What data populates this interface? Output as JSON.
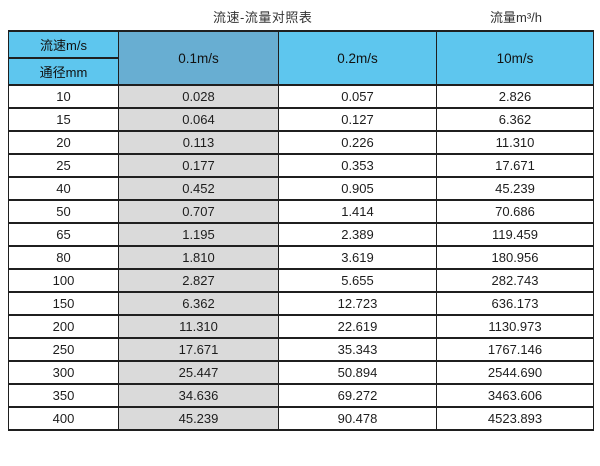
{
  "page": {
    "title": "流速-流量对照表",
    "right_title": "流量m³/h"
  },
  "colors": {
    "header_blue": "#5ec6ee",
    "header_dark_blue": "#68aed2",
    "gray_column": "#dadada",
    "border": "#1f1f1f"
  },
  "table": {
    "header": {
      "top_left_top": "流速m/s",
      "top_left_bottom": "通径mm",
      "velocity_columns": [
        "0.1m/s",
        "0.2m/s",
        "10m/s"
      ]
    },
    "rows": [
      {
        "dn": "10",
        "values": [
          "0.028",
          "0.057",
          "2.826"
        ]
      },
      {
        "dn": "15",
        "values": [
          "0.064",
          "0.127",
          "6.362"
        ]
      },
      {
        "dn": "20",
        "values": [
          "0.113",
          "0.226",
          "11.310"
        ]
      },
      {
        "dn": "25",
        "values": [
          "0.177",
          "0.353",
          "17.671"
        ]
      },
      {
        "dn": "40",
        "values": [
          "0.452",
          "0.905",
          "45.239"
        ]
      },
      {
        "dn": "50",
        "values": [
          "0.707",
          "1.414",
          "70.686"
        ]
      },
      {
        "dn": "65",
        "values": [
          "1.195",
          "2.389",
          "119.459"
        ]
      },
      {
        "dn": "80",
        "values": [
          "1.810",
          "3.619",
          "180.956"
        ]
      },
      {
        "dn": "100",
        "values": [
          "2.827",
          "5.655",
          "282.743"
        ]
      },
      {
        "dn": "150",
        "values": [
          "6.362",
          "12.723",
          "636.173"
        ]
      },
      {
        "dn": "200",
        "values": [
          "11.310",
          "22.619",
          "1130.973"
        ]
      },
      {
        "dn": "250",
        "values": [
          "17.671",
          "35.343",
          "1767.146"
        ]
      },
      {
        "dn": "300",
        "values": [
          "25.447",
          "50.894",
          "2544.690"
        ]
      },
      {
        "dn": "350",
        "values": [
          "34.636",
          "69.272",
          "3463.606"
        ]
      },
      {
        "dn": "400",
        "values": [
          "45.239",
          "90.478",
          "4523.893"
        ]
      }
    ]
  },
  "chart_data": {
    "type": "table",
    "title": "流速-流量对照表",
    "unit_label": "流量m³/h",
    "row_axis_label": "通径mm",
    "col_axis_label": "流速m/s",
    "categories": [
      10,
      15,
      20,
      25,
      40,
      50,
      65,
      80,
      100,
      150,
      200,
      250,
      300,
      350,
      400
    ],
    "series": [
      {
        "name": "0.1m/s",
        "values": [
          0.028,
          0.064,
          0.113,
          0.177,
          0.452,
          0.707,
          1.195,
          1.81,
          2.827,
          6.362,
          11.31,
          17.671,
          25.447,
          34.636,
          45.239
        ]
      },
      {
        "name": "0.2m/s",
        "values": [
          0.057,
          0.127,
          0.226,
          0.353,
          0.905,
          1.414,
          2.389,
          3.619,
          5.655,
          12.723,
          22.619,
          35.343,
          50.894,
          69.272,
          90.478
        ]
      },
      {
        "name": "10m/s",
        "values": [
          2.826,
          6.362,
          11.31,
          17.671,
          45.239,
          70.686,
          119.459,
          180.956,
          282.743,
          636.173,
          1130.973,
          1767.146,
          2544.69,
          3463.606,
          4523.893
        ]
      }
    ]
  }
}
